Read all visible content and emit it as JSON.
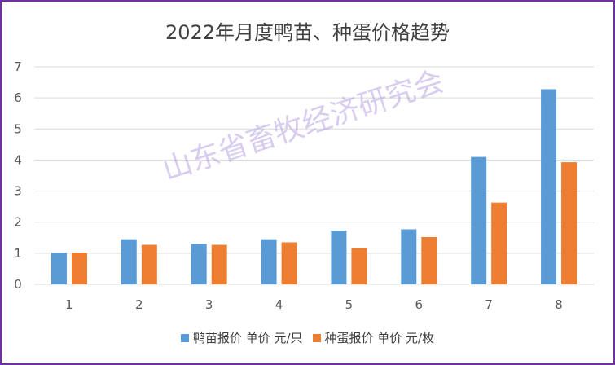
{
  "chart_data": {
    "type": "bar",
    "title": "2022年月度鸭苗、种蛋价格趋势",
    "categories": [
      "1",
      "2",
      "3",
      "4",
      "5",
      "6",
      "7",
      "8"
    ],
    "series": [
      {
        "name": "鸭苗报价 单价 元/只",
        "color": "#5b9bd5",
        "values": [
          1.02,
          1.45,
          1.3,
          1.45,
          1.73,
          1.77,
          4.1,
          6.28
        ]
      },
      {
        "name": "种蛋报价 单价 元/枚",
        "color": "#ed7d31",
        "values": [
          1.02,
          1.27,
          1.27,
          1.35,
          1.17,
          1.52,
          2.63,
          3.93
        ]
      }
    ],
    "ylim": [
      0,
      7
    ],
    "yticks": [
      "0",
      "1",
      "2",
      "3",
      "4",
      "5",
      "6",
      "7"
    ],
    "grid": true,
    "legend_position": "bottom"
  },
  "watermark": "山东省畜牧经济研究会"
}
